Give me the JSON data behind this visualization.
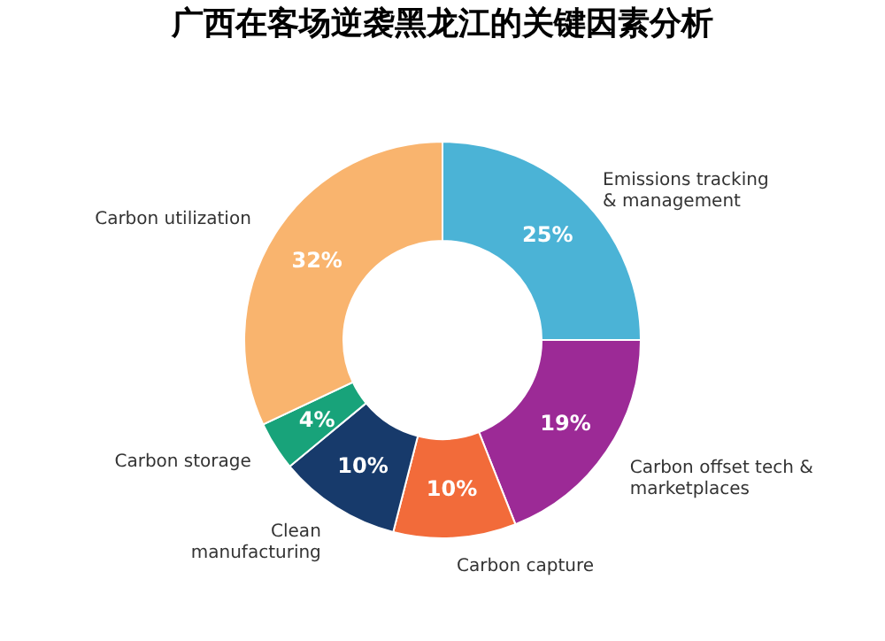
{
  "chart_data": {
    "type": "donut",
    "title": "广西在客场逆袭黑龙江的关键因素分析",
    "categories": [
      "Emissions tracking\n& management",
      "Carbon offset tech &\nmarketplaces",
      "Carbon capture",
      "Clean\nmanufacturing",
      "Carbon storage",
      "Carbon utilization"
    ],
    "values": [
      25,
      19,
      10,
      10,
      4,
      32
    ],
    "value_labels": [
      "25%",
      "19%",
      "10%",
      "10%",
      "4%",
      "32%"
    ],
    "colors": [
      "#4bb3d6",
      "#9c2a96",
      "#f26b3a",
      "#173a6b",
      "#18a37a",
      "#f9b46e"
    ]
  }
}
